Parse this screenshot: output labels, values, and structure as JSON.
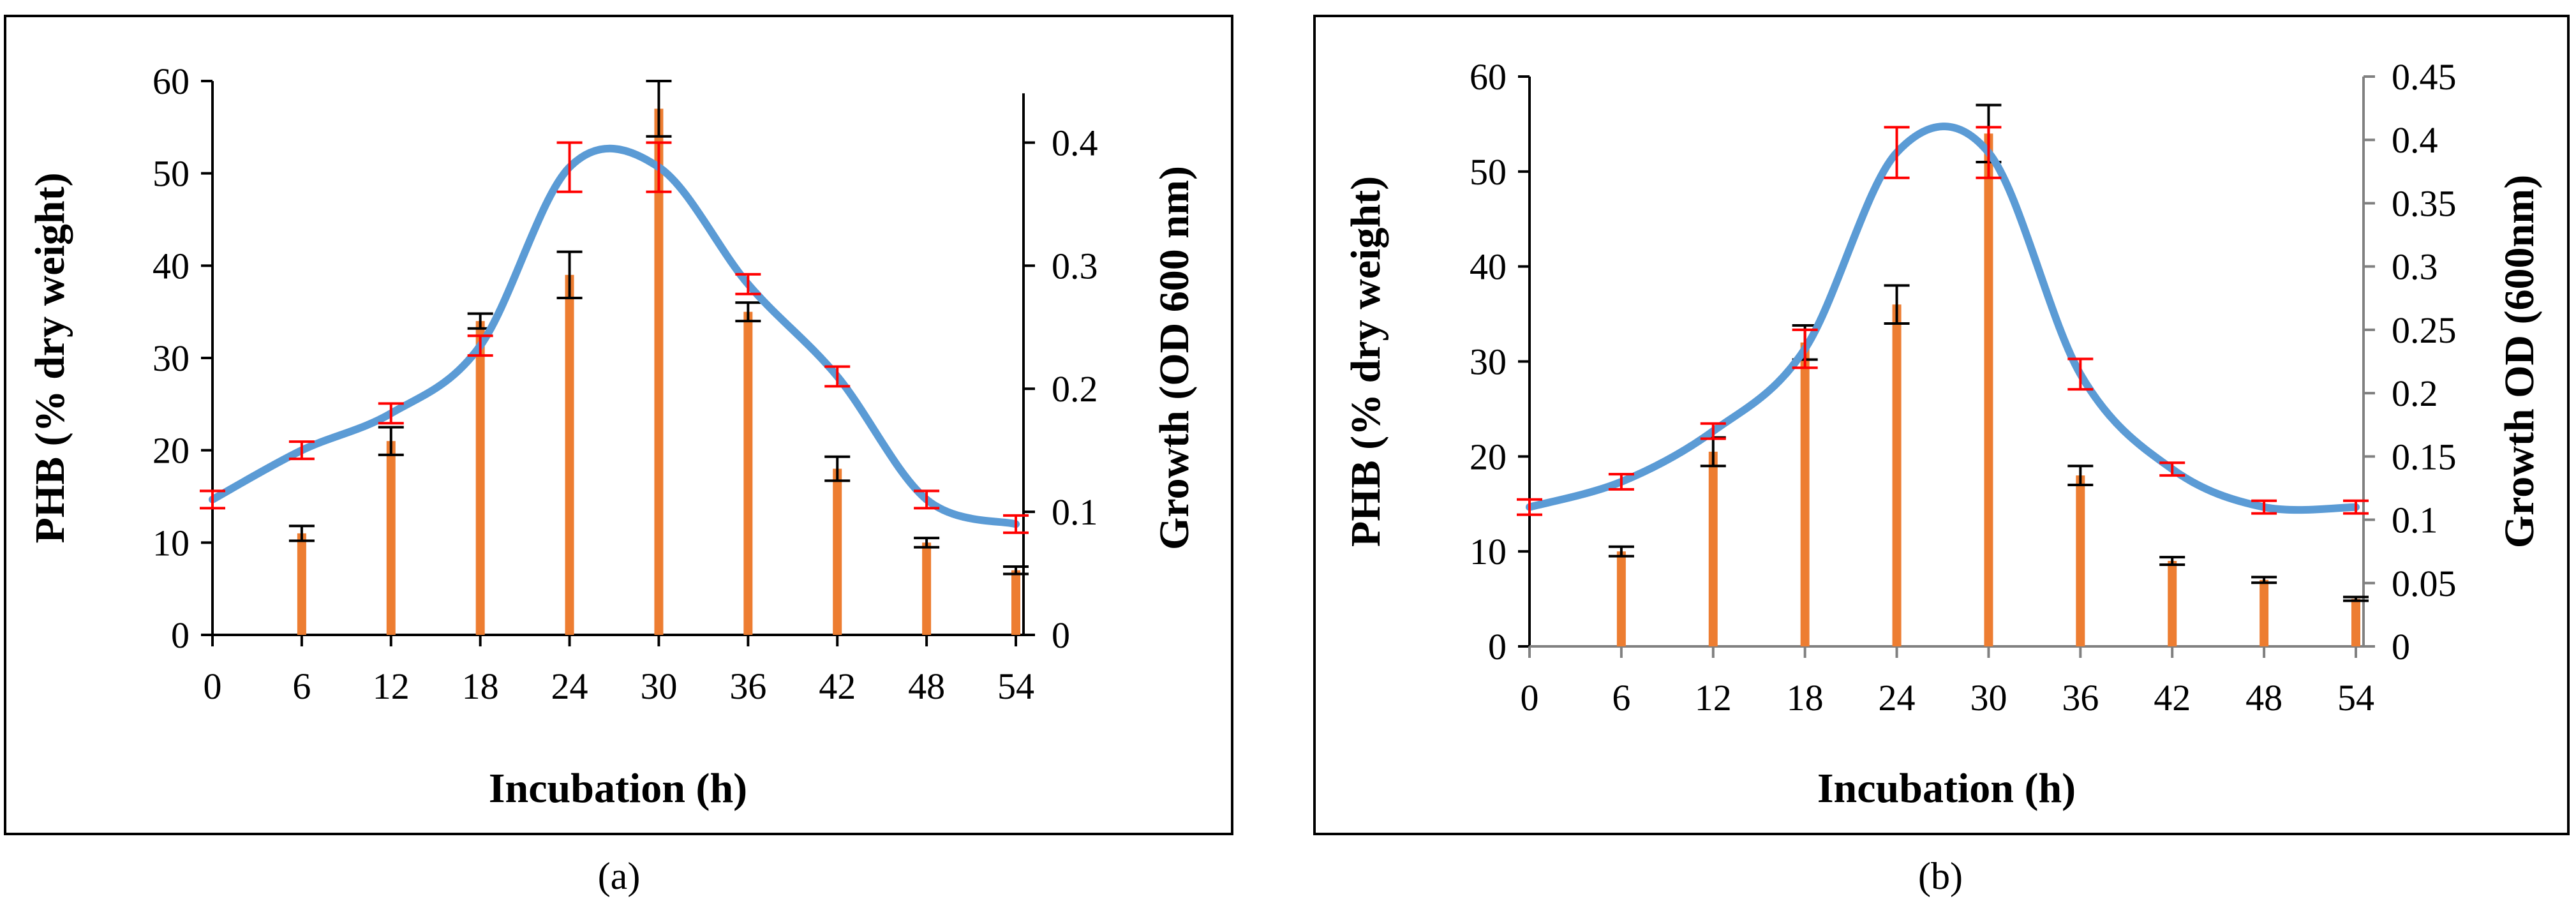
{
  "colors": {
    "bar": "#ED7D31",
    "line": "#5B9BD5",
    "bar_error": "#000000",
    "line_error": "#FF0000",
    "axis": "#000000",
    "right_axis_b": "#808080",
    "frame": "#000000"
  },
  "chart_data": [
    {
      "type": "bar",
      "caption": "(a)",
      "categories": [
        "0",
        "6",
        "12",
        "18",
        "24",
        "30",
        "36",
        "42",
        "48",
        "54"
      ],
      "x": [
        0,
        6,
        12,
        18,
        24,
        30,
        36,
        42,
        48,
        54
      ],
      "xlabel": "Incubation (h)",
      "ylabel": "PHB (% dry weight)",
      "y2label": "Growth (OD 600 nm)",
      "ylim": [
        0,
        60
      ],
      "y2lim": [
        0,
        0.45
      ],
      "yticks": [
        "0",
        "10",
        "20",
        "30",
        "40",
        "50",
        "60"
      ],
      "y2ticks": [
        "0",
        "0.1",
        "0.2",
        "0.3",
        "0.4"
      ],
      "y2tick_values": [
        0,
        0.1,
        0.2,
        0.3,
        0.4
      ],
      "y2_axis_top": 0.44,
      "series": [
        {
          "type": "bar",
          "axis": "left",
          "values": [
            0,
            11,
            21,
            34,
            39,
            57,
            35,
            18,
            10,
            7
          ],
          "errors": [
            0,
            0.8,
            1.5,
            0.8,
            2.5,
            3,
            1,
            1.3,
            0.5,
            0.4
          ]
        },
        {
          "type": "line",
          "axis": "right",
          "values": [
            0.11,
            0.15,
            0.18,
            0.235,
            0.38,
            0.38,
            0.285,
            0.21,
            0.11,
            0.09
          ],
          "errors": [
            0.007,
            0.007,
            0.008,
            0.008,
            0.02,
            0.02,
            0.008,
            0.008,
            0.007,
            0.007
          ]
        }
      ]
    },
    {
      "type": "bar",
      "caption": "(b)",
      "categories": [
        "0",
        "6",
        "12",
        "18",
        "24",
        "30",
        "36",
        "42",
        "48",
        "54"
      ],
      "x": [
        0,
        6,
        12,
        18,
        24,
        30,
        36,
        42,
        48,
        54
      ],
      "xlabel": "Incubation (h)",
      "ylabel": "PHB (% dry weight)",
      "y2label": "Growth OD (600nm)",
      "ylim": [
        0,
        60
      ],
      "y2lim": [
        0,
        0.45
      ],
      "yticks": [
        "0",
        "10",
        "20",
        "30",
        "40",
        "50",
        "60"
      ],
      "y2ticks": [
        "0",
        "0.05",
        "0.1",
        "0.15",
        "0.2",
        "0.25",
        "0.3",
        "0.35",
        "0.4",
        "0.45"
      ],
      "y2tick_values": [
        0,
        0.05,
        0.1,
        0.15,
        0.2,
        0.25,
        0.3,
        0.35,
        0.4,
        0.45
      ],
      "y2_axis_top": 0.45,
      "series": [
        {
          "type": "bar",
          "axis": "left",
          "values": [
            0,
            10,
            20.5,
            32,
            36,
            54,
            18,
            9,
            7,
            5
          ],
          "errors": [
            0,
            0.5,
            1.5,
            1.8,
            2,
            3,
            1,
            0.4,
            0.3,
            0.2
          ]
        },
        {
          "type": "line",
          "axis": "right",
          "values": [
            0.11,
            0.13,
            0.17,
            0.235,
            0.39,
            0.39,
            0.215,
            0.14,
            0.11,
            0.11
          ],
          "errors": [
            0.006,
            0.006,
            0.006,
            0.015,
            0.02,
            0.02,
            0.012,
            0.005,
            0.005,
            0.005
          ]
        }
      ]
    }
  ]
}
